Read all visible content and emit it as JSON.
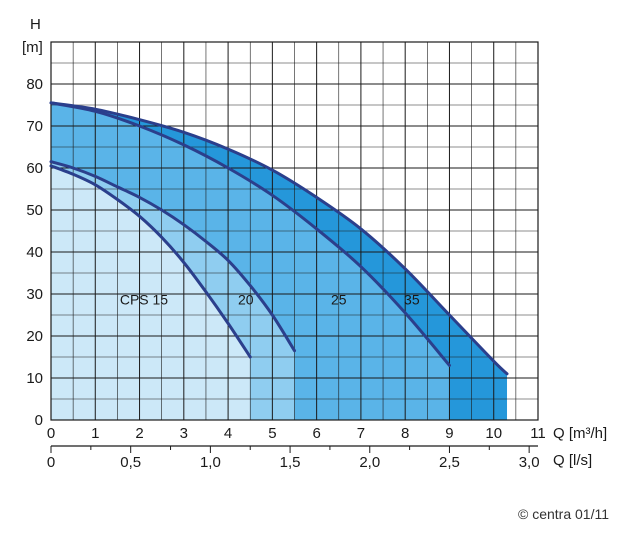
{
  "chart_data": {
    "type": "area",
    "y_axis": {
      "title": "H",
      "unit": "[m]",
      "min": 0,
      "max": 90,
      "ticks": [
        0,
        10,
        20,
        30,
        40,
        50,
        60,
        70,
        80
      ]
    },
    "x_axis_primary": {
      "label": "Q [m³/h]",
      "min": 0,
      "max": 11,
      "ticks": [
        0,
        1,
        2,
        3,
        4,
        5,
        6,
        7,
        8,
        9,
        10,
        11
      ]
    },
    "x_axis_secondary": {
      "label": "Q [l/s]",
      "ticks": [
        {
          "label": "0",
          "value": 0
        },
        {
          "label": "0,5",
          "value": 0.5
        },
        {
          "label": "1,0",
          "value": 1.0
        },
        {
          "label": "1,5",
          "value": 1.5
        },
        {
          "label": "2,0",
          "value": 2.0
        },
        {
          "label": "2,5",
          "value": 2.5
        },
        {
          "label": "3,0",
          "value": 3.0
        }
      ]
    },
    "grid": true,
    "series": [
      {
        "name": "CPS 15",
        "color": "#cce8f8",
        "x": [
          0,
          0.5,
          1,
          1.5,
          2,
          2.5,
          3,
          3.5,
          4,
          4.5
        ],
        "y": [
          60.5,
          58.5,
          56,
          52.5,
          48.5,
          43.5,
          37.5,
          30.5,
          23,
          15
        ]
      },
      {
        "name": "20",
        "color": "#8fcdf0",
        "x": [
          0,
          0.5,
          1,
          1.5,
          2,
          2.5,
          3,
          3.5,
          4,
          4.5,
          5,
          5.5
        ],
        "y": [
          61.5,
          60,
          58,
          55.5,
          53,
          50,
          46.5,
          42.5,
          38,
          32,
          25,
          16.5
        ]
      },
      {
        "name": "25",
        "color": "#5ab4e8",
        "x": [
          0,
          1,
          2,
          3,
          4,
          5,
          6,
          7,
          8,
          9
        ],
        "y": [
          75.5,
          73.5,
          70,
          65.5,
          60,
          53.5,
          45.5,
          36.5,
          25.5,
          13
        ]
      },
      {
        "name": "35",
        "color": "#2597da",
        "x": [
          0,
          1,
          2,
          3,
          4,
          5,
          6,
          7,
          8,
          9,
          10,
          10.3
        ],
        "y": [
          75.5,
          74,
          71.5,
          68.5,
          64.5,
          59.5,
          53,
          45.5,
          36,
          25,
          14,
          11
        ]
      }
    ],
    "curve_color": "#2b3f8c",
    "labels": [
      {
        "text": "CPS 15",
        "x": 2.1,
        "y": 27.5
      },
      {
        "text": "20",
        "x": 4.4,
        "y": 27.5
      },
      {
        "text": "25",
        "x": 6.5,
        "y": 27.5
      },
      {
        "text": "35",
        "x": 8.15,
        "y": 27.5
      }
    ]
  },
  "credit": "© centra 01/11"
}
